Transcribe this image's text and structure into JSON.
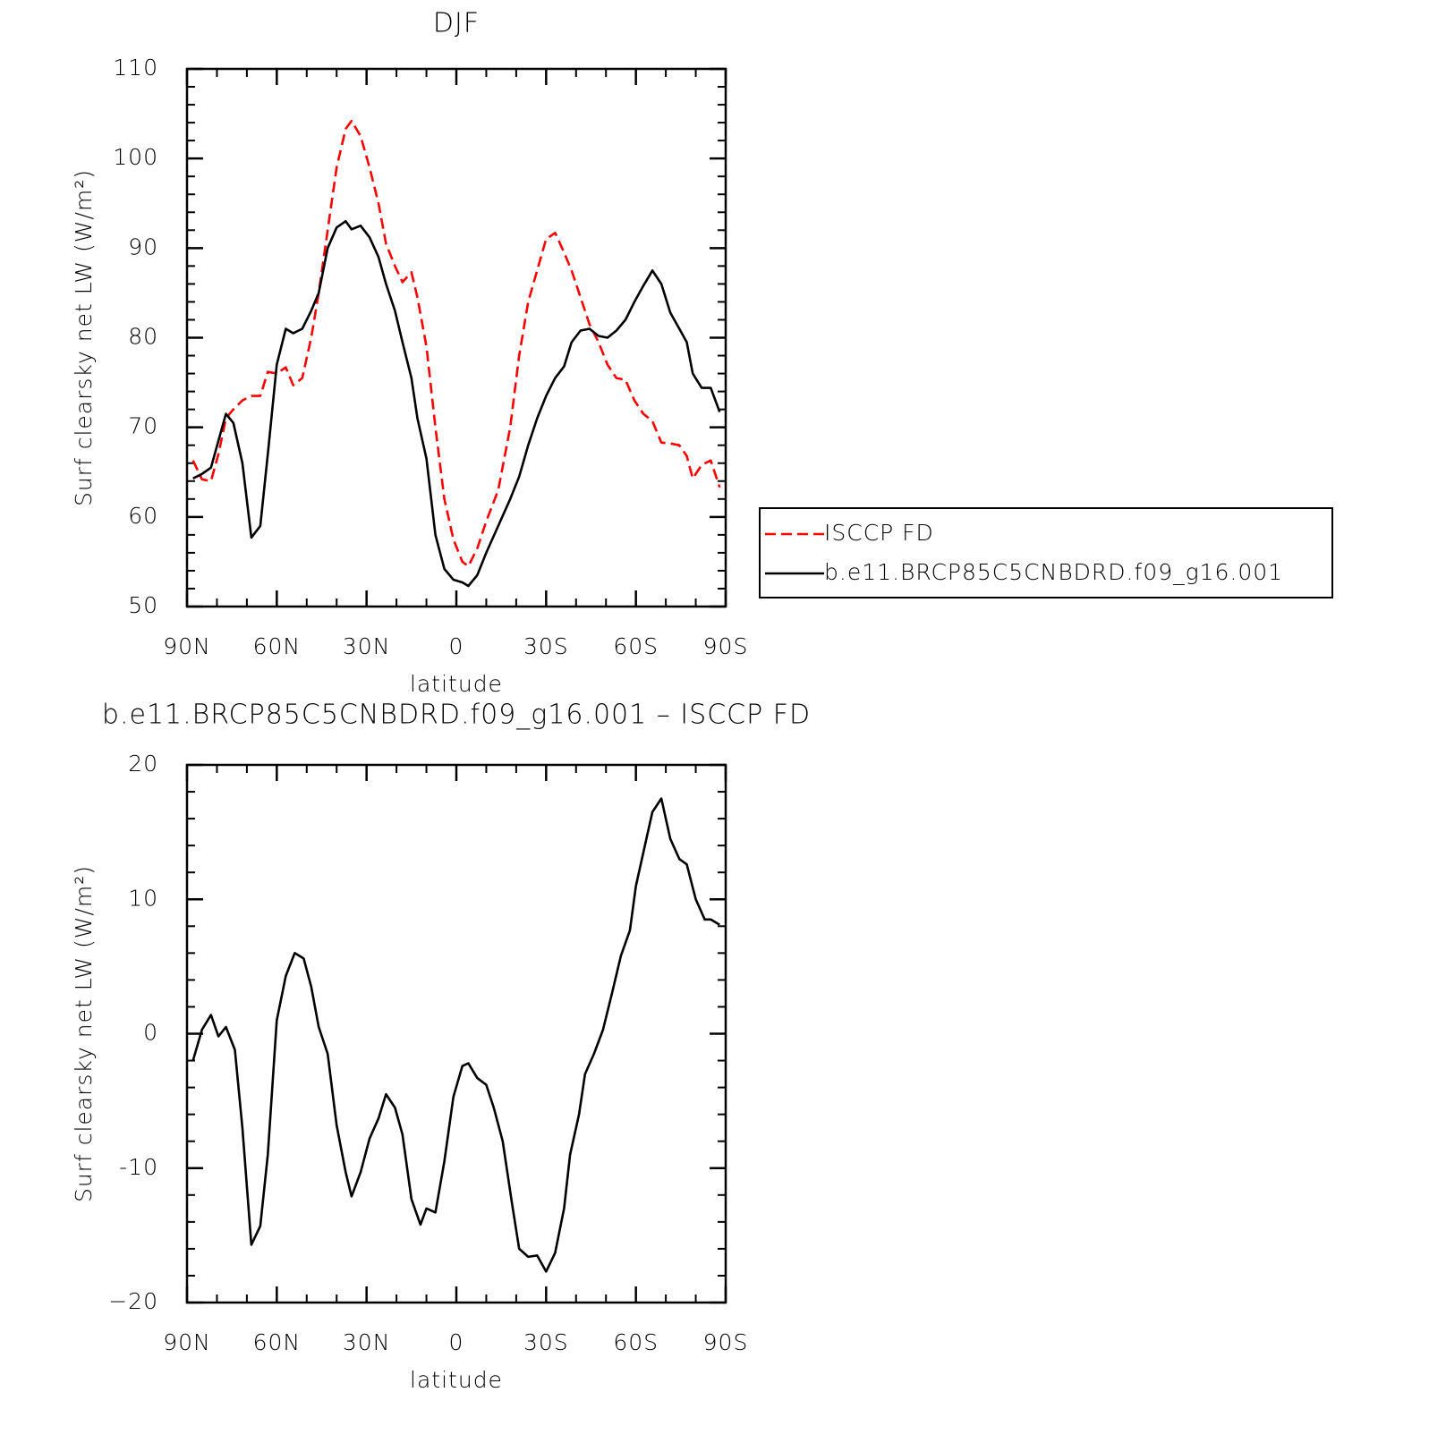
{
  "chart_data": [
    {
      "type": "line",
      "title": "DJF",
      "xlabel": "latitude",
      "ylabel": "Surf clearsky net LW (W/m²)",
      "x": [
        88,
        85,
        82,
        79.5,
        77,
        74.5,
        71.5,
        68.5,
        65.5,
        63,
        60,
        57,
        54.5,
        51.5,
        48.5,
        46,
        43,
        40,
        37,
        35,
        32,
        29,
        26,
        23.5,
        20.5,
        18,
        15,
        13,
        10,
        7,
        4,
        1,
        -2,
        -4,
        -7,
        -10,
        -14,
        -18,
        -21,
        -24,
        -27,
        -30,
        -33,
        -36,
        -38.5,
        -41.5,
        -44.5,
        -47.5,
        -50.5,
        -53.5,
        -56.5,
        -59.5,
        -62.5,
        -65.5,
        -68.5,
        -71.5,
        -74.5,
        -77,
        -79,
        -82,
        -85,
        -88
      ],
      "series": [
        {
          "name": "ISCCP FD",
          "color": "#ff0000",
          "dash": true,
          "values": [
            66.3,
            64.2,
            64,
            67,
            71,
            72,
            73,
            73.5,
            73.5,
            76.2,
            76,
            76.7,
            74.7,
            75.5,
            80,
            85,
            92,
            99,
            103.3,
            104.2,
            102.5,
            99,
            95,
            90.5,
            88,
            86.2,
            87.3,
            84.5,
            79,
            70,
            62,
            57.5,
            55,
            54.5,
            56.5,
            59.5,
            63,
            70,
            78,
            84,
            87.5,
            91,
            91.7,
            89.5,
            87.5,
            84.5,
            81.5,
            79.5,
            77,
            75.5,
            75.3,
            73,
            71.5,
            70.7,
            68.3,
            68.2,
            68,
            66.8,
            64.3,
            65.8,
            66.3,
            63.3
          ]
        },
        {
          "name": "b.e11.BRCP85C5CNBDRD.f09_g16.001",
          "color": "#000000",
          "dash": false,
          "values": [
            64.3,
            64.8,
            65.5,
            68.5,
            71.5,
            70.5,
            66,
            57.7,
            59,
            67,
            77,
            81,
            80.5,
            81,
            83,
            85,
            90,
            92.3,
            93,
            92.1,
            92.5,
            91.2,
            89,
            86,
            83,
            79.5,
            75.5,
            71,
            66.5,
            58,
            54.2,
            53,
            52.7,
            52.3,
            53.5,
            56,
            59,
            62,
            64.5,
            68,
            71,
            73.5,
            75.5,
            76.8,
            79.5,
            80.8,
            81,
            80.2,
            80,
            80.8,
            82,
            84,
            85.8,
            87.5,
            86,
            82.8,
            81,
            79.5,
            76,
            74.4,
            74.4,
            71.7
          ]
        }
      ],
      "xlim": [
        90,
        -90
      ],
      "xticks": [
        {
          "value": 90,
          "label": "90N"
        },
        {
          "value": 60,
          "label": "60N"
        },
        {
          "value": 30,
          "label": "30N"
        },
        0,
        {
          "value": -30,
          "label": "30S"
        },
        {
          "value": -60,
          "label": "60S"
        },
        {
          "value": -90,
          "label": "90S"
        }
      ],
      "ylim": [
        50,
        110
      ],
      "yticks": [
        50,
        60,
        70,
        80,
        90,
        100,
        110
      ],
      "legend": "right"
    },
    {
      "type": "line",
      "title": "b.e11.BRCP85C5CNBDRD.f09_g16.001 – ISCCP FD",
      "xlabel": "latitude",
      "ylabel": "Surf clearsky net LW (W/m²)",
      "x": [
        88,
        85,
        82,
        79.5,
        77,
        74,
        71.5,
        68.5,
        65.5,
        63,
        60,
        57,
        54,
        51,
        48.5,
        46,
        43,
        40,
        37,
        35,
        32,
        29,
        26,
        23.5,
        20.5,
        18,
        15,
        12,
        10,
        7,
        4,
        1,
        -2,
        -4,
        -7,
        -10,
        -12.5,
        -15.5,
        -18.5,
        -21,
        -24,
        -27,
        -30,
        -33,
        -36,
        -38,
        -41,
        -43,
        -46,
        -49,
        -52,
        -55,
        -58,
        -60,
        -63,
        -65.5,
        -68.5,
        -71.5,
        -74.5,
        -77,
        -80,
        -83,
        -85,
        -88
      ],
      "color": "#000000",
      "values": [
        -2,
        0.3,
        1.4,
        -0.2,
        0.5,
        -1.2,
        -7,
        -15.7,
        -14.3,
        -9,
        1,
        4.3,
        6,
        5.6,
        3.5,
        0.5,
        -1.5,
        -6.8,
        -10.3,
        -12.1,
        -10.3,
        -7.8,
        -6.3,
        -4.5,
        -5.5,
        -7.5,
        -12.3,
        -14.2,
        -13,
        -13.3,
        -9.5,
        -4.7,
        -2.4,
        -2.2,
        -3.3,
        -3.8,
        -5.5,
        -8,
        -12.5,
        -16,
        -16.6,
        -16.5,
        -17.7,
        -16.3,
        -13,
        -9,
        -6,
        -3,
        -1.5,
        0.3,
        3,
        5.8,
        7.7,
        11,
        14,
        16.5,
        17.5,
        14.5,
        13,
        12.6,
        10,
        8.5,
        8.5,
        8.1
      ],
      "xlim": [
        90,
        -90
      ],
      "xticks": [
        {
          "value": 90,
          "label": "90N"
        },
        {
          "value": 60,
          "label": "60N"
        },
        {
          "value": 30,
          "label": "30N"
        },
        0,
        {
          "value": -30,
          "label": "30S"
        },
        {
          "value": -60,
          "label": "60S"
        },
        {
          "value": -90,
          "label": "90S"
        }
      ],
      "ylim": [
        -20,
        20
      ],
      "yticks": [
        {
          "value": -20,
          "label": "−20"
        },
        -10,
        0,
        10,
        20
      ]
    }
  ]
}
